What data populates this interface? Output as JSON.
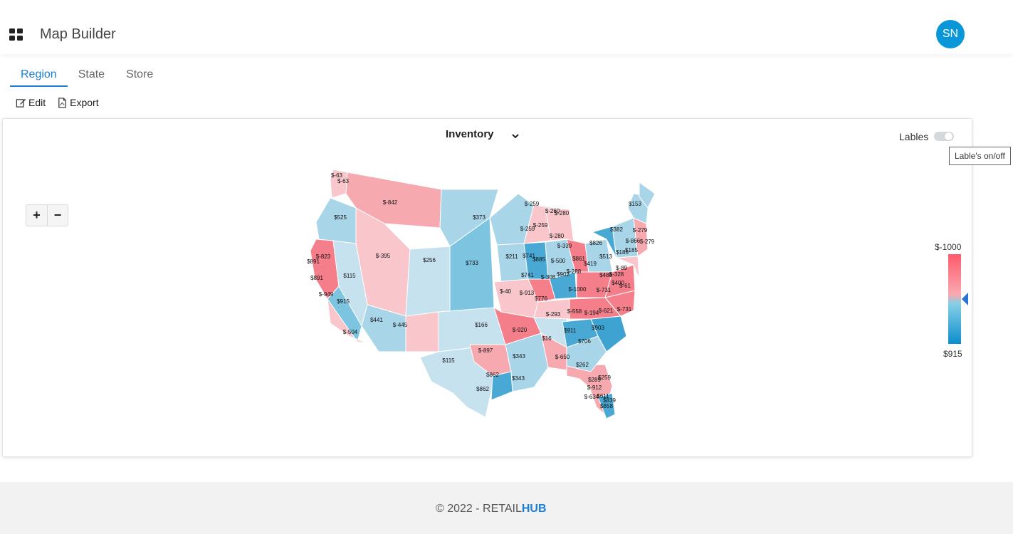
{
  "header": {
    "title": "Map Builder",
    "avatar_initials": "SN"
  },
  "tabs": [
    {
      "label": "Region"
    },
    {
      "label": "State"
    },
    {
      "label": "Store"
    }
  ],
  "toolbar": {
    "edit_label": "Edit",
    "export_label": "Export"
  },
  "map": {
    "measure_selected": "Inventory",
    "labels_toggle_label": "Lables",
    "labels_tooltip": "Lable's on/off",
    "zoom_in": "+",
    "zoom_out": "−",
    "legend": {
      "max_label": "$-1000",
      "min_label": "$915",
      "colors": [
        "#ff5a6b",
        "#f9a9b0",
        "#86cfe6",
        "#0b8fcc"
      ]
    },
    "region_labels": [
      "$-63",
      "$-63",
      "$-842",
      "$525",
      "$-395",
      "$256",
      "$373",
      "$733",
      "$-823",
      "$891",
      "$891",
      "$115",
      "$-949",
      "$915",
      "$441",
      "$-445",
      "$-504",
      "$166",
      "$115",
      "$-897",
      "$862",
      "$862",
      "$343",
      "$343",
      "$-40",
      "$211",
      "$741",
      "$741",
      "$885",
      "$-308",
      "$-913",
      "$776",
      "$-920",
      "$-293",
      "$16",
      "$-650",
      "$262",
      "$-259",
      "$-259",
      "$-259",
      "$-260",
      "$-280",
      "$-280",
      "$-339",
      "$-500",
      "$-288",
      "$902",
      "$-1000",
      "$-558",
      "$-194",
      "$-621",
      "$911",
      "$903",
      "$706",
      "$861",
      "$419",
      "$513",
      "$826",
      "$382",
      "$-279",
      "$-866",
      "$-279",
      "$185",
      "$185",
      "$153",
      "$-89",
      "$-328",
      "$488",
      "$-731",
      "$-731",
      "$400",
      "$-61",
      "$289",
      "$259",
      "$-912",
      "$-634",
      "$611",
      "$839",
      "$858"
    ]
  },
  "footer": {
    "text_prefix": "© 2022 - RETAIL",
    "text_brand": "HUB"
  }
}
